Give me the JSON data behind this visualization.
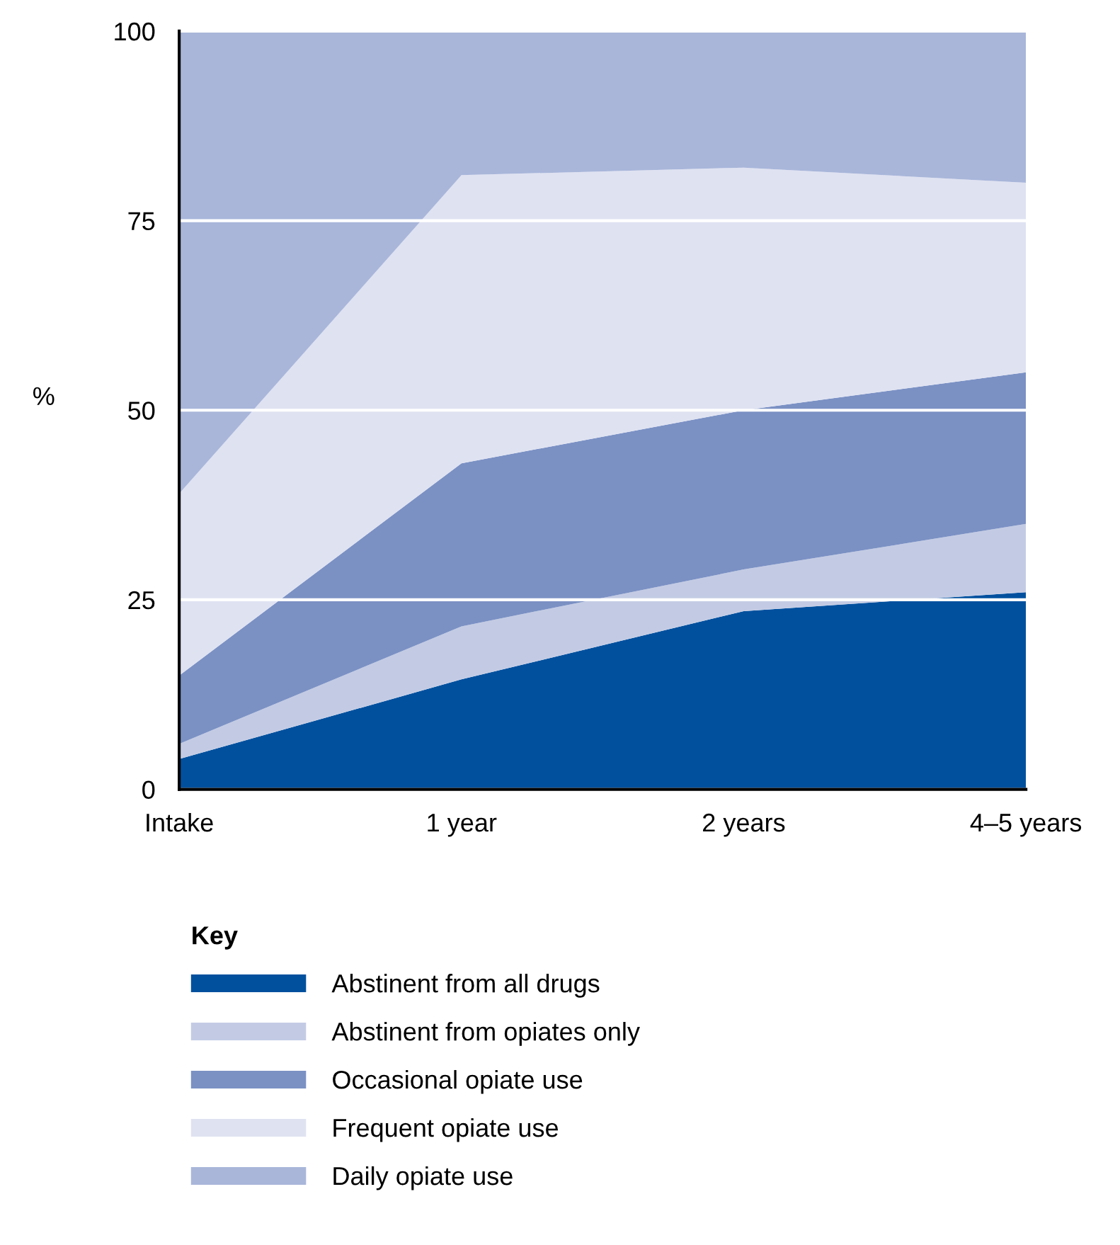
{
  "chart_data": {
    "type": "area",
    "stacked": true,
    "ylabel": "%",
    "legend_title": "Key",
    "categories": [
      "Intake",
      "1 year",
      "2 years",
      "4–5 years"
    ],
    "series": [
      {
        "name": "Abstinent from all drugs",
        "color": "#00509e",
        "values": [
          4,
          14.5,
          23.5,
          26
        ]
      },
      {
        "name": "Abstinent from opiates only",
        "color": "#c3cbe4",
        "values": [
          2,
          7,
          5.5,
          9
        ]
      },
      {
        "name": "Occasional opiate use",
        "color": "#7b91c4",
        "values": [
          9,
          21.5,
          21,
          20
        ]
      },
      {
        "name": "Frequent opiate use",
        "color": "#dfe2f1",
        "values": [
          24,
          38,
          32,
          25
        ]
      },
      {
        "name": "Daily opiate use",
        "color": "#a9b6da",
        "values": [
          61,
          19,
          18,
          20
        ]
      }
    ],
    "ylim": [
      0,
      100
    ],
    "yticks": [
      0,
      25,
      50,
      75,
      100
    ],
    "grid": "y",
    "legend": "bottom"
  }
}
